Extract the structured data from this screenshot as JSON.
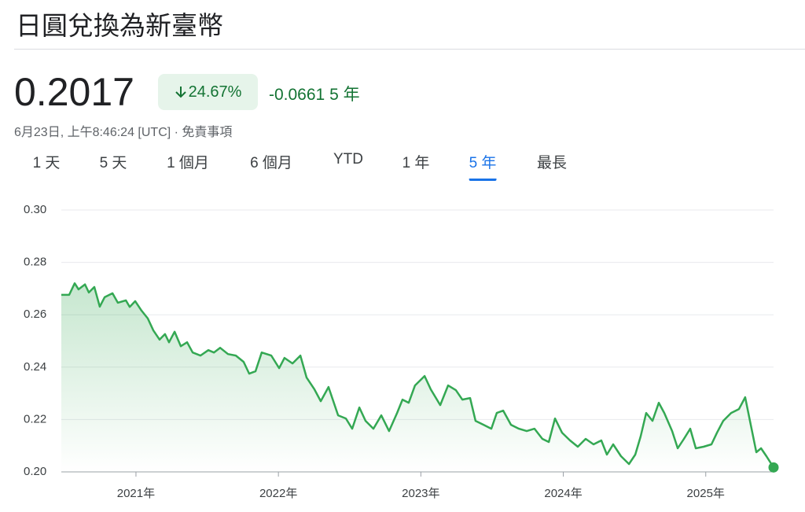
{
  "title": "日圓兌換為新臺幣",
  "price": "0.2017",
  "change_percent": "24.67%",
  "change_abs": "-0.0661",
  "change_period": "5 年",
  "timestamp": "6月23日, 上午8:46:24 [UTC] ·",
  "disclaimer": "免責事項",
  "ranges": [
    "1 天",
    "5 天",
    "1 個月",
    "6 個月",
    "YTD",
    "1 年",
    "5 年",
    "最長"
  ],
  "selected_range_index": 6,
  "chart_data": {
    "type": "line",
    "color": "#34a853",
    "grid": true,
    "xlim": [
      2020.476,
      2025.476
    ],
    "ylim": [
      0.2,
      0.3
    ],
    "xticks": [
      {
        "value": 2021,
        "label": "2021年"
      },
      {
        "value": 2022,
        "label": "2022年"
      },
      {
        "value": 2023,
        "label": "2023年"
      },
      {
        "value": 2024,
        "label": "2024年"
      },
      {
        "value": 2025,
        "label": "2025年"
      }
    ],
    "yticks": [
      {
        "value": 0.2,
        "label": "0.20"
      },
      {
        "value": 0.22,
        "label": "0.22"
      },
      {
        "value": 0.24,
        "label": "0.24"
      },
      {
        "value": 0.26,
        "label": "0.26"
      },
      {
        "value": 0.28,
        "label": "0.28"
      },
      {
        "value": 0.3,
        "label": "0.30"
      }
    ],
    "x": [
      2020.476,
      2020.531,
      2020.57,
      2020.597,
      2020.642,
      2020.669,
      2020.708,
      2020.746,
      2020.78,
      2020.835,
      2020.873,
      2020.929,
      2020.956,
      2020.995,
      2021.039,
      2021.083,
      2021.122,
      2021.166,
      2021.204,
      2021.232,
      2021.271,
      2021.315,
      2021.359,
      2021.398,
      2021.453,
      2021.508,
      2021.547,
      2021.591,
      2021.646,
      2021.701,
      2021.756,
      2021.795,
      2021.839,
      2021.883,
      2021.95,
      2022.005,
      2022.043,
      2022.099,
      2022.154,
      2022.198,
      2022.253,
      2022.297,
      2022.352,
      2022.419,
      2022.474,
      2022.518,
      2022.568,
      2022.612,
      2022.667,
      2022.722,
      2022.777,
      2022.833,
      2022.871,
      2022.915,
      2022.959,
      2023.026,
      2023.07,
      2023.136,
      2023.191,
      2023.246,
      2023.291,
      2023.346,
      2023.384,
      2023.44,
      2023.495,
      2023.533,
      2023.578,
      2023.633,
      2023.688,
      2023.743,
      2023.798,
      2023.853,
      2023.898,
      2023.942,
      2023.991,
      2024.047,
      2024.102,
      2024.157,
      2024.212,
      2024.267,
      2024.306,
      2024.35,
      2024.405,
      2024.461,
      2024.505,
      2024.543,
      2024.582,
      2024.626,
      2024.67,
      2024.709,
      2024.764,
      2024.803,
      2024.847,
      2024.891,
      2024.93,
      2024.985,
      2025.04,
      2025.079,
      2025.123,
      2025.178,
      2025.233,
      2025.277,
      2025.316,
      2025.355,
      2025.388,
      2025.426,
      2025.476
    ],
    "values": [
      0.2676,
      0.2676,
      0.272,
      0.2697,
      0.2716,
      0.2685,
      0.2706,
      0.2631,
      0.2667,
      0.2682,
      0.2646,
      0.2655,
      0.263,
      0.2652,
      0.2616,
      0.2586,
      0.254,
      0.2505,
      0.2526,
      0.2495,
      0.2535,
      0.248,
      0.2495,
      0.2456,
      0.2444,
      0.2465,
      0.2456,
      0.2474,
      0.245,
      0.2444,
      0.242,
      0.2375,
      0.2384,
      0.2456,
      0.2444,
      0.2396,
      0.2435,
      0.2414,
      0.2444,
      0.236,
      0.2315,
      0.227,
      0.2324,
      0.2216,
      0.2204,
      0.2165,
      0.2246,
      0.2195,
      0.2165,
      0.2216,
      0.2156,
      0.2225,
      0.2276,
      0.2264,
      0.233,
      0.2366,
      0.2315,
      0.2255,
      0.233,
      0.2312,
      0.2276,
      0.2282,
      0.2195,
      0.218,
      0.2165,
      0.2225,
      0.2234,
      0.218,
      0.2165,
      0.2156,
      0.2165,
      0.2126,
      0.2114,
      0.2204,
      0.215,
      0.212,
      0.2096,
      0.2126,
      0.2105,
      0.212,
      0.2066,
      0.2105,
      0.206,
      0.203,
      0.2066,
      0.2135,
      0.2225,
      0.2195,
      0.2264,
      0.2225,
      0.2156,
      0.209,
      0.2126,
      0.2165,
      0.209,
      0.2096,
      0.2105,
      0.215,
      0.2195,
      0.2225,
      0.224,
      0.2285,
      0.218,
      0.2075,
      0.209,
      0.206,
      0.2017
    ]
  }
}
